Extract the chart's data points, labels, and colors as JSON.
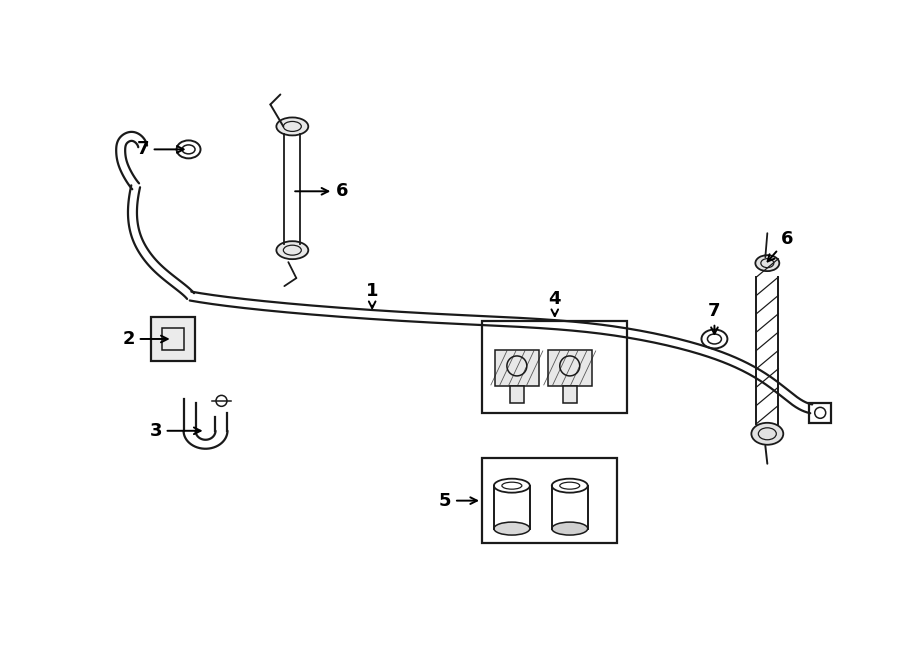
{
  "bg_color": "#ffffff",
  "line_color": "#1a1a1a",
  "lw": 1.6,
  "tlw": 1.1,
  "fs": 13,
  "fig_w": 9.0,
  "fig_h": 6.61,
  "xlim": [
    0,
    9.0
  ],
  "ylim": [
    0,
    6.61
  ]
}
